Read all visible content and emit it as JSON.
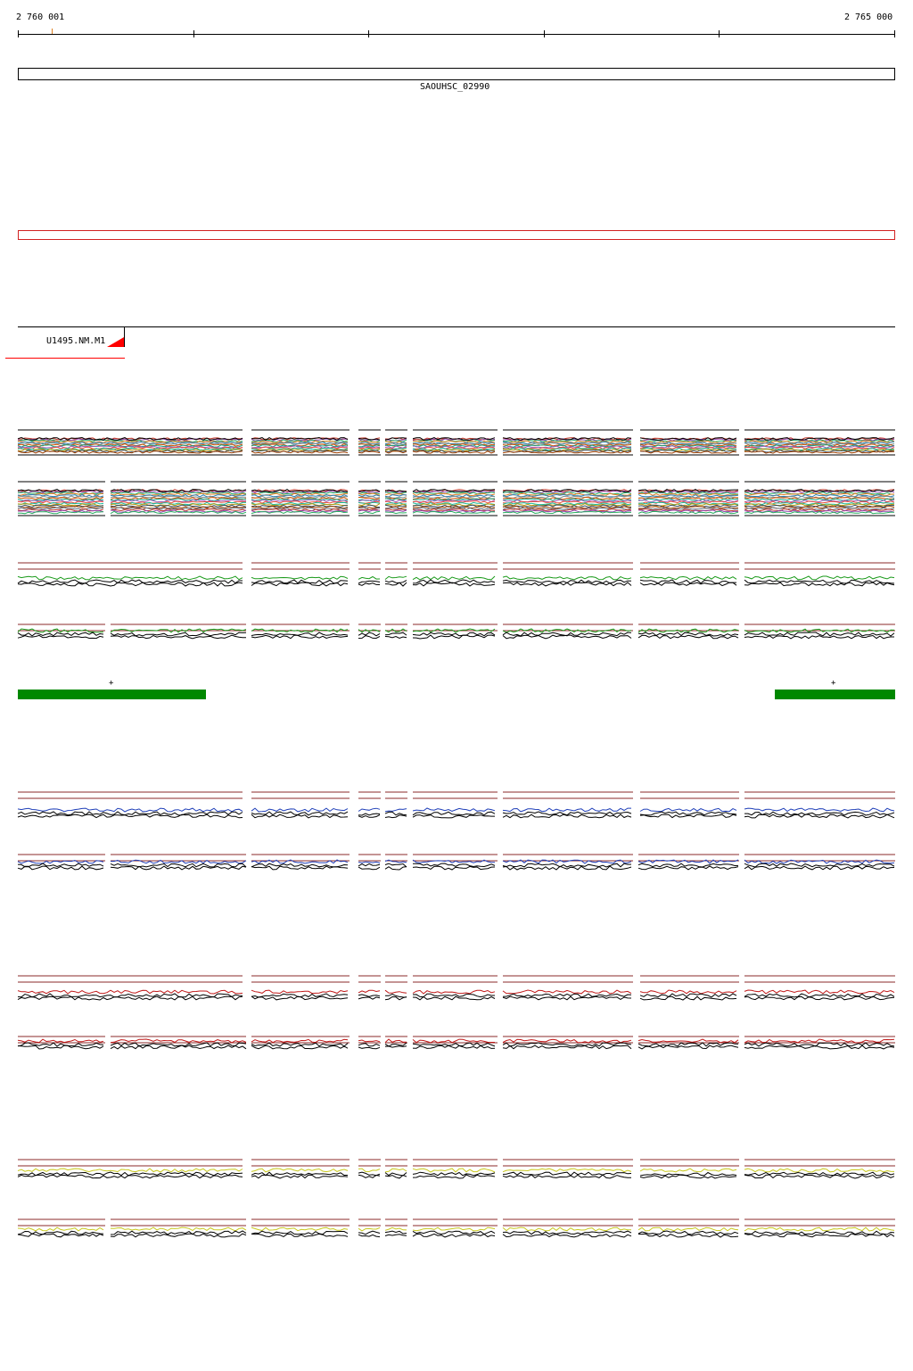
{
  "ruler": {
    "start_label": "2 760 001",
    "end_label": "2 765 000"
  },
  "gene": {
    "name": "SAOUHSC_02990"
  },
  "feature": {
    "label": "U1495.NM.M1"
  },
  "strand_marks": {
    "left": "+",
    "right": "+"
  },
  "colors": {
    "gene_box": "#000000",
    "region_box": "#d22222",
    "feature_marker": "#ff0000",
    "strand_bar": "#008800",
    "track_green": "#1a9a1a",
    "track_blue": "#1f3fb8",
    "track_red": "#c01818",
    "track_yellow": "#c8c81e",
    "guide_line": "#8b2a2a"
  }
}
